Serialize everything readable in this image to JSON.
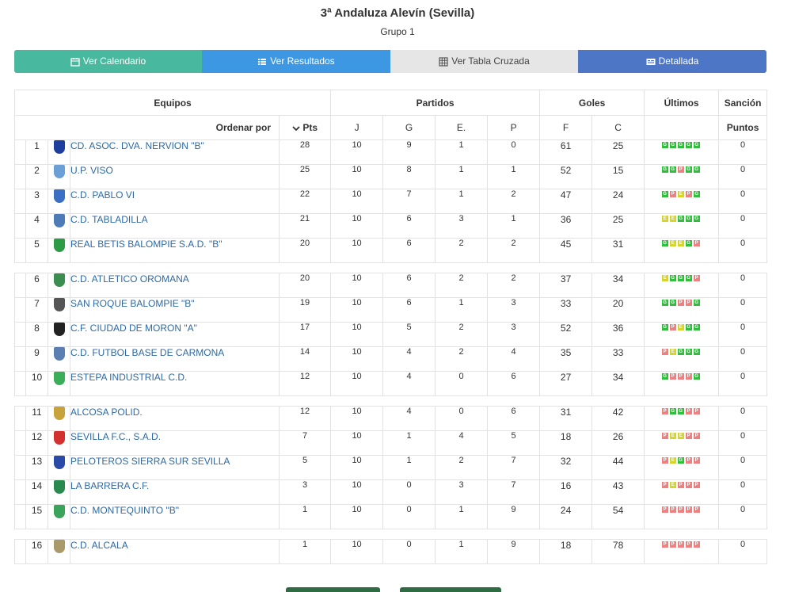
{
  "header": {
    "title": "3ª Andaluza Alevín (Sevilla)",
    "subtitle": "Grupo 1"
  },
  "tabs": [
    {
      "label": "Ver Calendario",
      "icon": "calendar-icon"
    },
    {
      "label": "Ver Resultados",
      "icon": "list-icon"
    },
    {
      "label": "Ver Tabla Cruzada",
      "icon": "table-icon"
    },
    {
      "label": "Detallada",
      "icon": "id-card-icon"
    }
  ],
  "table": {
    "group_headers": {
      "equipos": "Equipos",
      "partidos": "Partidos",
      "goles": "Goles",
      "ultimos": "Últimos",
      "sancion": "Sanción"
    },
    "sub_headers": {
      "ordenar": "Ordenar por",
      "pts": "Pts",
      "j": "J",
      "g": "G",
      "e": "E.",
      "p": "P",
      "f": "F",
      "c": "C",
      "puntos": "Puntos"
    },
    "colors": {
      "win": "#2fbf3a",
      "draw": "#d6d62a",
      "loss": "#f08080",
      "link": "#2d6aa5"
    },
    "rows": [
      {
        "pos": "1",
        "team": "CD. ASOC. DVA. NERVION \"B\"",
        "crest": "#1c3f9e",
        "pts": "28",
        "j": "10",
        "g": "9",
        "e": "1",
        "p": "0",
        "f": "61",
        "c": "25",
        "form": [
          "G",
          "G",
          "G",
          "G",
          "G"
        ],
        "sancion": "0"
      },
      {
        "pos": "2",
        "team": "U.P. VISO",
        "crest": "#6aa0d6",
        "pts": "25",
        "j": "10",
        "g": "8",
        "e": "1",
        "p": "1",
        "f": "52",
        "c": "15",
        "form": [
          "G",
          "G",
          "P",
          "G",
          "G"
        ],
        "sancion": "0"
      },
      {
        "pos": "3",
        "team": "C.D. PABLO VI",
        "crest": "#3b6fc4",
        "pts": "22",
        "j": "10",
        "g": "7",
        "e": "1",
        "p": "2",
        "f": "47",
        "c": "24",
        "form": [
          "G",
          "P",
          "E",
          "P",
          "G"
        ],
        "sancion": "0"
      },
      {
        "pos": "4",
        "team": "C.D. TABLADILLA",
        "crest": "#4d7bb8",
        "pts": "21",
        "j": "10",
        "g": "6",
        "e": "3",
        "p": "1",
        "f": "36",
        "c": "25",
        "form": [
          "E",
          "E",
          "G",
          "G",
          "G"
        ],
        "sancion": "0"
      },
      {
        "pos": "5",
        "team": "REAL BETIS BALOMPIE S.A.D. \"B\"",
        "crest": "#2e9b45",
        "pts": "20",
        "j": "10",
        "g": "6",
        "e": "2",
        "p": "2",
        "f": "45",
        "c": "31",
        "form": [
          "G",
          "E",
          "E",
          "G",
          "P"
        ],
        "sancion": "0"
      },
      {
        "pos": "6",
        "team": "C.D. ATLETICO OROMANA",
        "crest": "#3a8e4f",
        "pts": "20",
        "j": "10",
        "g": "6",
        "e": "2",
        "p": "2",
        "f": "37",
        "c": "34",
        "form": [
          "E",
          "G",
          "G",
          "G",
          "P"
        ],
        "sancion": "0"
      },
      {
        "pos": "7",
        "team": "SAN ROQUE BALOMPIE \"B\"",
        "crest": "#555555",
        "pts": "19",
        "j": "10",
        "g": "6",
        "e": "1",
        "p": "3",
        "f": "33",
        "c": "20",
        "form": [
          "G",
          "G",
          "P",
          "P",
          "G"
        ],
        "sancion": "0"
      },
      {
        "pos": "8",
        "team": "C.F. CIUDAD DE MORON \"A\"",
        "crest": "#222222",
        "pts": "17",
        "j": "10",
        "g": "5",
        "e": "2",
        "p": "3",
        "f": "52",
        "c": "36",
        "form": [
          "G",
          "P",
          "E",
          "G",
          "G"
        ],
        "sancion": "0"
      },
      {
        "pos": "9",
        "team": "C.D. FUTBOL BASE DE CARMONA",
        "crest": "#5a7fb0",
        "pts": "14",
        "j": "10",
        "g": "4",
        "e": "2",
        "p": "4",
        "f": "35",
        "c": "33",
        "form": [
          "P",
          "E",
          "G",
          "G",
          "G"
        ],
        "sancion": "0"
      },
      {
        "pos": "10",
        "team": "ESTEPA INDUSTRIAL C.D.",
        "crest": "#3cae5a",
        "pts": "12",
        "j": "10",
        "g": "4",
        "e": "0",
        "p": "6",
        "f": "27",
        "c": "34",
        "form": [
          "G",
          "P",
          "P",
          "P",
          "G"
        ],
        "sancion": "0"
      },
      {
        "pos": "11",
        "team": "ALCOSA POLID.",
        "crest": "#c8a23a",
        "pts": "12",
        "j": "10",
        "g": "4",
        "e": "0",
        "p": "6",
        "f": "31",
        "c": "42",
        "form": [
          "P",
          "G",
          "G",
          "P",
          "P"
        ],
        "sancion": "0"
      },
      {
        "pos": "12",
        "team": "SEVILLA F.C., S.A.D.",
        "crest": "#d33030",
        "pts": "7",
        "j": "10",
        "g": "1",
        "e": "4",
        "p": "5",
        "f": "18",
        "c": "26",
        "form": [
          "P",
          "E",
          "E",
          "P",
          "P"
        ],
        "sancion": "0"
      },
      {
        "pos": "13",
        "team": "PELOTEROS SIERRA SUR SEVILLA",
        "crest": "#2a4aa8",
        "pts": "5",
        "j": "10",
        "g": "1",
        "e": "2",
        "p": "7",
        "f": "32",
        "c": "44",
        "form": [
          "P",
          "E",
          "G",
          "P",
          "P"
        ],
        "sancion": "0"
      },
      {
        "pos": "14",
        "team": "LA BARRERA C.F.",
        "crest": "#2a8a4e",
        "pts": "3",
        "j": "10",
        "g": "0",
        "e": "3",
        "p": "7",
        "f": "16",
        "c": "43",
        "form": [
          "P",
          "E",
          "P",
          "P",
          "P"
        ],
        "sancion": "0"
      },
      {
        "pos": "15",
        "team": "C.D. MONTEQUINTO \"B\"",
        "crest": "#3ca45a",
        "pts": "1",
        "j": "10",
        "g": "0",
        "e": "1",
        "p": "9",
        "f": "24",
        "c": "54",
        "form": [
          "P",
          "P",
          "P",
          "P",
          "P"
        ],
        "sancion": "0"
      },
      {
        "pos": "16",
        "team": "C.D. ALCALA",
        "crest": "#a89a6a",
        "pts": "1",
        "j": "10",
        "g": "0",
        "e": "1",
        "p": "9",
        "f": "18",
        "c": "78",
        "form": [
          "P",
          "P",
          "P",
          "P",
          "P"
        ],
        "sancion": "0"
      }
    ],
    "separators_after": [
      5,
      10,
      15
    ]
  }
}
